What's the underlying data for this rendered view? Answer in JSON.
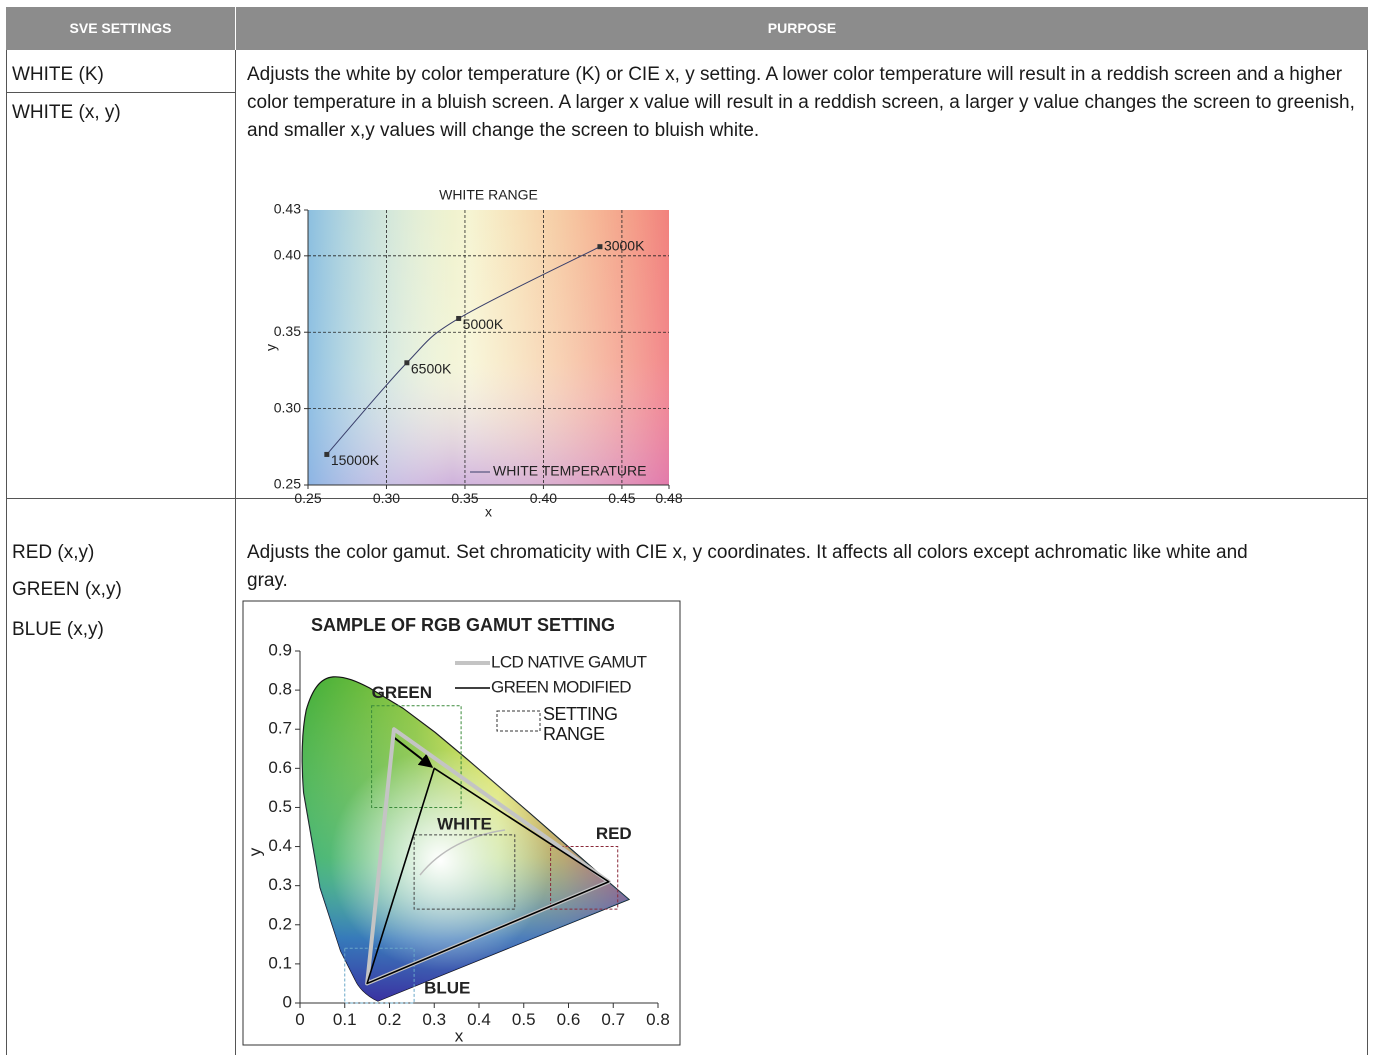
{
  "table": {
    "headers": [
      "SVE SETTINGS",
      "PURPOSE"
    ],
    "rows": [
      {
        "settings": [
          "WHITE (K)",
          "WHITE (x, y)"
        ],
        "purpose": "Adjusts the white by color temperature (K) or CIE x, y setting. A lower color temperature will result in a reddish screen and a higher color temperature in a bluish screen. A larger x value will result in a reddish screen, a larger y value changes the screen to greenish, and smaller x,y values will change the screen to bluish white.",
        "figure": {
          "type": "line",
          "title": "WHITE RANGE",
          "x_label": "x",
          "y_label": "y",
          "xlim": [
            0.25,
            0.48
          ],
          "ylim": [
            0.25,
            0.43
          ],
          "xticks": [
            0.25,
            {
              "value": 0.3,
              "label": "0.30"
            },
            0.35,
            {
              "value": 0.4,
              "label": "0.40"
            },
            0.45,
            0.48
          ],
          "yticks": [
            0.25,
            {
              "value": 0.3,
              "label": "0.30"
            },
            0.35,
            {
              "value": 0.4,
              "label": "0.40"
            },
            0.43
          ],
          "grid": true,
          "x": [
            0.262,
            0.313,
            0.346,
            0.436
          ],
          "point_labels": [
            "15000K",
            "6500K",
            "5000K",
            "3000K"
          ],
          "series": [
            {
              "name": "WHITE TEMPERATURE",
              "color": "#3a3f6b",
              "values": [
                0.27,
                0.33,
                0.359,
                0.406
              ]
            }
          ]
        }
      },
      {
        "settings": [
          "RED (x,y)",
          "GREEN (x,y)",
          "BLUE (x,y)"
        ],
        "purpose": "Adjusts the color gamut. Set chromaticity with CIE x, y coordinates. It affects all colors except achromatic like white and gray.",
        "figure": {
          "type": "gamut",
          "title": "SAMPLE OF RGB GAMUT SETTING",
          "x_label": "x",
          "y_label": "y",
          "xlim": [
            0,
            0.8
          ],
          "ylim": [
            0,
            0.9
          ],
          "xticks": [
            0,
            0.1,
            0.2,
            0.3,
            0.4,
            0.5,
            0.6,
            0.7,
            0.8
          ],
          "yticks": [
            0,
            0.1,
            0.2,
            0.3,
            0.4,
            0.5,
            0.6,
            0.7,
            0.8,
            0.9
          ],
          "series": [
            {
              "name": "LCD NATIVE GAMUT",
              "color": "#c4c4c4",
              "x": [
                0.69,
                0.21,
                0.15
              ],
              "values": [
                0.31,
                0.7,
                0.05
              ]
            },
            {
              "name": "GREEN MODIFIED",
              "color": "#000000",
              "x": [
                0.69,
                0.3,
                0.15
              ],
              "values": [
                0.31,
                0.6,
                0.05
              ]
            }
          ],
          "ranges": {
            "name": "SETTING RANGE",
            "boxes": [
              {
                "label": "GREEN",
                "color": "#3a8a3a",
                "xlim": [
                  0.16,
                  0.36
                ],
                "ylim": [
                  0.5,
                  0.76
                ]
              },
              {
                "label": "WHITE",
                "color": "#444444",
                "xlim": [
                  0.255,
                  0.48
                ],
                "ylim": [
                  0.24,
                  0.43
                ]
              },
              {
                "label": "RED",
                "color": "#8a2a3a",
                "xlim": [
                  0.56,
                  0.71
                ],
                "ylim": [
                  0.24,
                  0.4
                ]
              },
              {
                "label": "BLUE",
                "color": "#6aa8c8",
                "xlim": [
                  0.1,
                  0.255
                ],
                "ylim": [
                  0,
                  0.14
                ]
              }
            ]
          }
        }
      }
    ]
  }
}
